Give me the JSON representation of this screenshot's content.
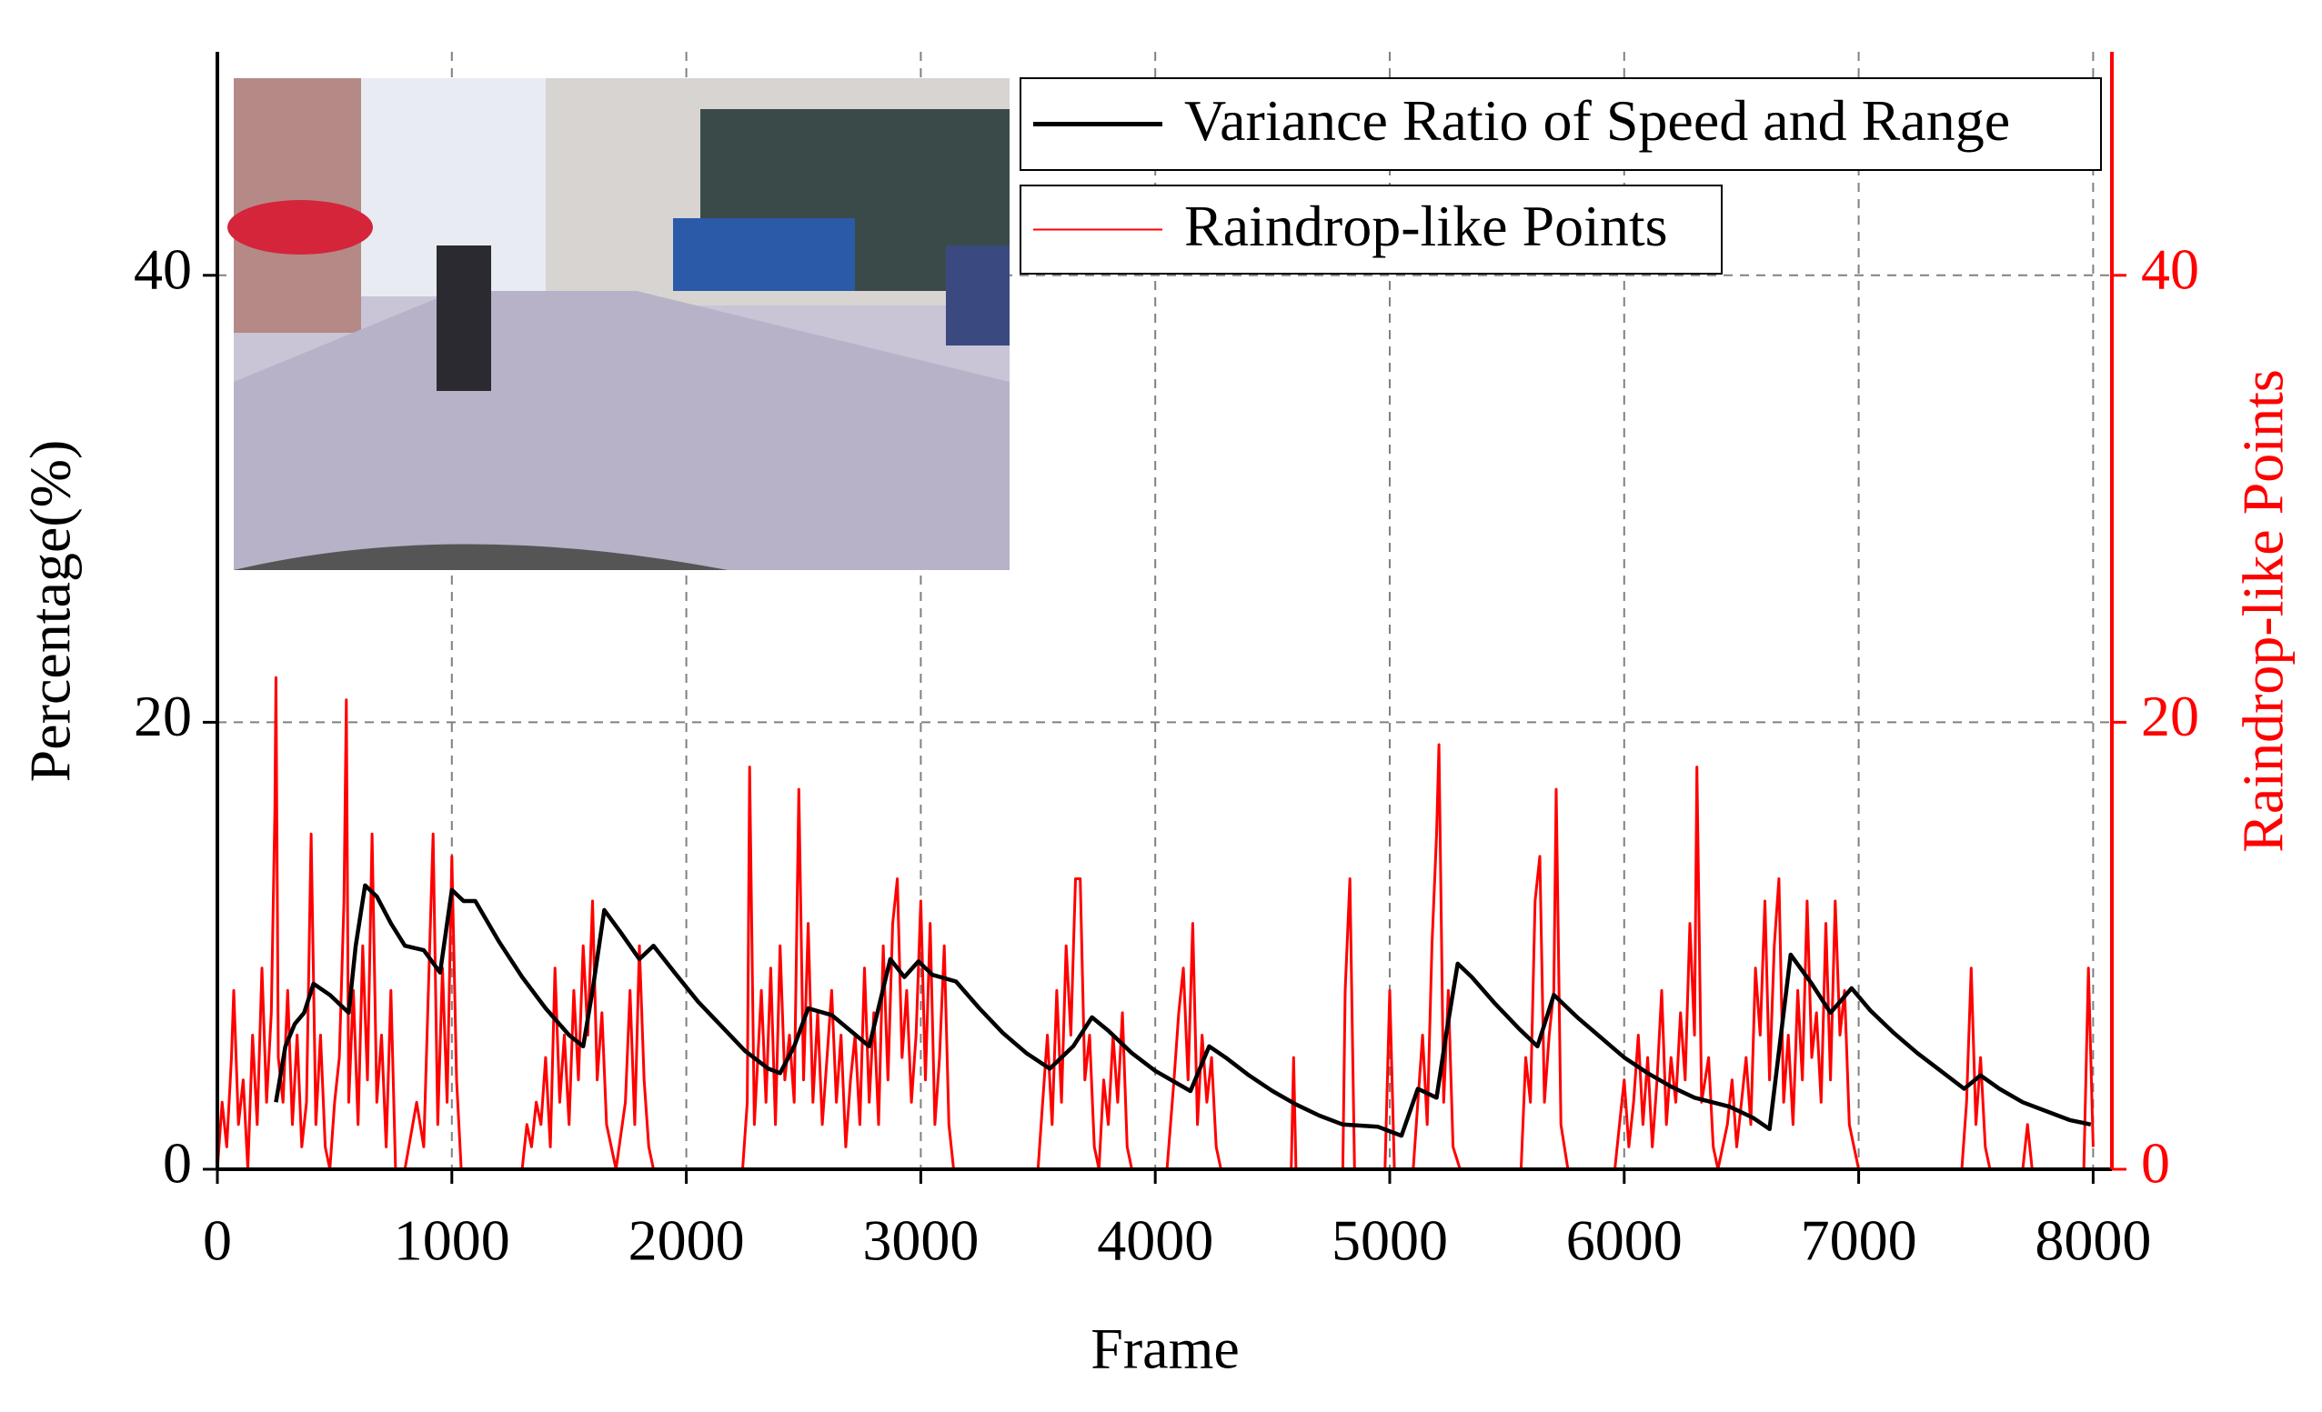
{
  "chart_data": {
    "type": "line",
    "xlabel": "Frame",
    "ylabel": "Percentage(%)",
    "y2label": "Raindrop-like Points",
    "xlim": [
      0,
      8080
    ],
    "xticks": [
      0,
      1000,
      2000,
      3000,
      4000,
      5000,
      6000,
      7000,
      8000
    ],
    "ylim": [
      0,
      50
    ],
    "yticks": [
      0,
      20,
      40
    ],
    "y2lim": [
      0,
      50
    ],
    "y2ticks": [
      0,
      20,
      40
    ],
    "grid": true,
    "legend": "upper right",
    "series": [
      {
        "name": "Variance Ratio of Speed and Range",
        "color": "#000000",
        "axis": "y",
        "x": [
          250,
          290,
          330,
          370,
          410,
          480,
          560,
          590,
          630,
          680,
          740,
          800,
          880,
          950,
          1000,
          1050,
          1100,
          1200,
          1300,
          1400,
          1500,
          1560,
          1600,
          1650,
          1720,
          1800,
          1860,
          1950,
          2050,
          2150,
          2250,
          2350,
          2400,
          2460,
          2520,
          2620,
          2700,
          2780,
          2870,
          2930,
          2990,
          3050,
          3150,
          3250,
          3350,
          3450,
          3550,
          3650,
          3730,
          3800,
          3900,
          4000,
          4150,
          4230,
          4300,
          4400,
          4500,
          4600,
          4700,
          4800,
          4950,
          5050,
          5120,
          5200,
          5240,
          5290,
          5350,
          5450,
          5550,
          5630,
          5700,
          5800,
          5900,
          6000,
          6100,
          6200,
          6300,
          6450,
          6550,
          6620,
          6710,
          6800,
          6880,
          6970,
          7050,
          7150,
          7250,
          7350,
          7450,
          7520,
          7600,
          7700,
          7800,
          7900,
          7990
        ],
        "values": [
          3,
          5.5,
          6.5,
          7,
          8.3,
          7.8,
          7,
          10,
          12.7,
          12.2,
          11,
          10,
          9.8,
          8.8,
          12.5,
          12,
          12,
          10.2,
          8.6,
          7.2,
          6,
          5.5,
          8,
          11.6,
          10.6,
          9.4,
          10,
          8.8,
          7.5,
          6.4,
          5.3,
          4.5,
          4.3,
          5.5,
          7.2,
          6.9,
          6.2,
          5.5,
          9.4,
          8.6,
          9.3,
          8.7,
          8.4,
          7.2,
          6.1,
          5.2,
          4.5,
          5.5,
          6.8,
          6.2,
          5.2,
          4.4,
          3.5,
          5.5,
          5,
          4.2,
          3.5,
          2.9,
          2.4,
          2,
          1.9,
          1.5,
          3.6,
          3.2,
          6,
          9.2,
          8.6,
          7.4,
          6.3,
          5.5,
          7.8,
          6.8,
          5.9,
          5,
          4.3,
          3.7,
          3.2,
          2.8,
          2.3,
          1.8,
          9.6,
          8.3,
          7,
          8.1,
          7.1,
          6.1,
          5.2,
          4.4,
          3.6,
          4.2,
          3.6,
          3,
          2.6,
          2.2,
          2
        ]
      },
      {
        "name": "Raindrop-like Points",
        "color": "#ff0000",
        "axis": "y2",
        "x": [
          0,
          20,
          40,
          60,
          70,
          90,
          110,
          130,
          150,
          170,
          190,
          210,
          230,
          245,
          250,
          260,
          280,
          300,
          320,
          340,
          360,
          380,
          400,
          420,
          440,
          460,
          480,
          500,
          520,
          540,
          550,
          560,
          580,
          600,
          620,
          640,
          660,
          680,
          700,
          720,
          740,
          760,
          800,
          850,
          880,
          900,
          920,
          940,
          960,
          980,
          1000,
          1020,
          1040,
          1300,
          1320,
          1340,
          1360,
          1380,
          1400,
          1420,
          1440,
          1460,
          1480,
          1500,
          1520,
          1540,
          1560,
          1580,
          1600,
          1620,
          1640,
          1660,
          1700,
          1740,
          1760,
          1780,
          1800,
          1820,
          1840,
          1860,
          2240,
          2260,
          2270,
          2290,
          2320,
          2340,
          2360,
          2380,
          2400,
          2420,
          2440,
          2460,
          2480,
          2500,
          2520,
          2540,
          2560,
          2580,
          2600,
          2620,
          2640,
          2660,
          2680,
          2700,
          2720,
          2740,
          2760,
          2780,
          2800,
          2820,
          2840,
          2860,
          2880,
          2900,
          2920,
          2940,
          2960,
          2980,
          3000,
          3020,
          3040,
          3060,
          3080,
          3100,
          3120,
          3140,
          3500,
          3520,
          3540,
          3560,
          3580,
          3600,
          3620,
          3640,
          3660,
          3680,
          3700,
          3720,
          3740,
          3760,
          3780,
          3800,
          3820,
          3840,
          3860,
          3880,
          3900,
          4050,
          4080,
          4100,
          4120,
          4140,
          4160,
          4180,
          4200,
          4220,
          4240,
          4260,
          4280,
          4580,
          4590,
          4600,
          4800,
          4810,
          4830,
          4850,
          4980,
          5000,
          5020,
          5100,
          5120,
          5140,
          5160,
          5180,
          5200,
          5210,
          5230,
          5250,
          5270,
          5300,
          5560,
          5580,
          5600,
          5620,
          5640,
          5660,
          5680,
          5700,
          5710,
          5730,
          5760,
          5960,
          5980,
          6000,
          6020,
          6040,
          6060,
          6080,
          6100,
          6120,
          6140,
          6160,
          6180,
          6200,
          6220,
          6240,
          6260,
          6280,
          6300,
          6310,
          6330,
          6360,
          6380,
          6400,
          6440,
          6460,
          6480,
          6500,
          6520,
          6540,
          6560,
          6580,
          6600,
          6620,
          6640,
          6660,
          6680,
          6700,
          6720,
          6740,
          6760,
          6780,
          6800,
          6820,
          6840,
          6860,
          6880,
          6900,
          6920,
          6940,
          6960,
          6980,
          7000,
          7440,
          7460,
          7480,
          7500,
          7520,
          7540,
          7560,
          7700,
          7720,
          7740,
          7960,
          7980,
          8000
        ],
        "values": [
          0,
          3,
          1,
          5,
          8,
          2,
          4,
          0,
          6,
          2,
          9,
          3,
          7,
          16,
          22,
          5,
          3,
          8,
          2,
          6,
          1,
          3,
          15,
          2,
          6,
          1,
          0,
          3,
          5,
          12,
          21,
          3,
          8,
          2,
          10,
          4,
          15,
          3,
          6,
          1,
          8,
          0,
          0,
          3,
          1,
          8,
          15,
          2,
          9,
          3,
          14,
          4,
          0,
          0,
          2,
          1,
          3,
          2,
          5,
          1,
          9,
          3,
          6,
          2,
          8,
          4,
          10,
          6,
          12,
          4,
          7,
          2,
          0,
          3,
          8,
          2,
          10,
          4,
          1,
          0,
          0,
          3,
          18,
          2,
          8,
          3,
          9,
          2,
          10,
          4,
          6,
          3,
          17,
          4,
          11,
          3,
          7,
          2,
          5,
          8,
          3,
          6,
          1,
          4,
          6,
          2,
          9,
          3,
          7,
          2,
          10,
          4,
          11,
          13,
          5,
          8,
          3,
          6,
          12,
          4,
          11,
          2,
          5,
          10,
          2,
          0,
          0,
          3,
          6,
          2,
          8,
          3,
          10,
          6,
          13,
          13,
          4,
          6,
          1,
          0,
          4,
          2,
          6,
          3,
          7,
          1,
          0,
          0,
          4,
          7,
          9,
          4,
          11,
          2,
          6,
          3,
          5,
          1,
          0,
          0,
          5,
          0,
          0,
          8,
          13,
          0,
          0,
          8,
          0,
          0,
          3,
          6,
          2,
          10,
          15,
          19,
          3,
          8,
          1,
          0,
          0,
          5,
          3,
          12,
          14,
          3,
          6,
          8,
          17,
          2,
          0,
          0,
          2,
          4,
          1,
          3,
          6,
          2,
          5,
          1,
          4,
          8,
          2,
          5,
          3,
          7,
          4,
          11,
          6,
          18,
          3,
          5,
          1,
          0,
          2,
          4,
          1,
          3,
          5,
          2,
          9,
          6,
          12,
          4,
          10,
          13,
          3,
          6,
          2,
          8,
          4,
          12,
          5,
          7,
          3,
          11,
          4,
          12,
          6,
          8,
          2,
          1,
          0,
          0,
          3,
          9,
          2,
          5,
          1,
          0,
          0,
          2,
          0,
          0,
          9,
          1
        ]
      }
    ]
  }
}
